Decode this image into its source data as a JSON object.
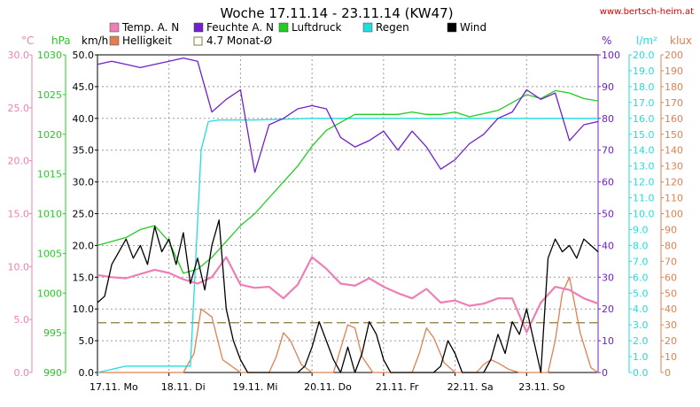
{
  "header": {
    "title": "Woche 17.11.14 - 23.11.14 (KW47)",
    "url": "www.bertsch-heim.at"
  },
  "legend": [
    {
      "label": "Temp. A. N",
      "color": "#ee7fb4"
    },
    {
      "label": "Feuchte A. N",
      "color": "#7020cc"
    },
    {
      "label": "Luftdruck",
      "color": "#22cc22"
    },
    {
      "label": "Regen",
      "color": "#22dddd"
    },
    {
      "label": "Wind",
      "color": "#000000"
    },
    {
      "label": "Helligkeit",
      "color": "#e08050"
    },
    {
      "label": "4.7 Monat-Ø",
      "color": "#8a7a3a",
      "style": "dashed"
    }
  ],
  "axes": {
    "temp": {
      "unit": "°C",
      "color": "#ee7fb4",
      "min": 0,
      "max": 30,
      "step": 5,
      "labels": [
        "0.0",
        "5.0",
        "10.0",
        "15.0",
        "20.0",
        "25.0",
        "30.0"
      ]
    },
    "press": {
      "unit": "hPa",
      "color": "#22cc22",
      "min": 990,
      "max": 1030,
      "step": 5,
      "labels": [
        "990",
        "995",
        "1000",
        "1005",
        "1010",
        "1015",
        "1020",
        "1025",
        "1030"
      ]
    },
    "wind": {
      "unit": "km/h",
      "color": "#000000",
      "min": 0,
      "max": 50,
      "step": 5,
      "labels": [
        "0.0",
        "5.0",
        "10.0",
        "15.0",
        "20.0",
        "25.0",
        "30.0",
        "35.0",
        "40.0",
        "45.0",
        "50.0"
      ]
    },
    "hum": {
      "unit": "%",
      "color": "#7020cc",
      "min": 0,
      "max": 100,
      "step": 10,
      "labels": [
        "0",
        "10",
        "20",
        "30",
        "40",
        "50",
        "60",
        "70",
        "80",
        "90",
        "100"
      ]
    },
    "rain": {
      "unit": "l/m²",
      "color": "#22dddd",
      "min": 0,
      "max": 20,
      "step": 1,
      "labels": [
        "0.0",
        "1.0",
        "2.0",
        "3.0",
        "4.0",
        "5.0",
        "6.0",
        "7.0",
        "8.0",
        "9.0",
        "10.0",
        "11.0",
        "12.0",
        "13.0",
        "14.0",
        "15.0",
        "16.0",
        "17.0",
        "18.0",
        "19.0",
        "20.0"
      ]
    },
    "lux": {
      "unit": "klux",
      "color": "#e08050",
      "min": 0,
      "max": 200,
      "step": 10,
      "labels": [
        "0",
        "10",
        "20",
        "30",
        "40",
        "50",
        "60",
        "70",
        "80",
        "90",
        "100",
        "110",
        "120",
        "130",
        "140",
        "150",
        "160",
        "170",
        "180",
        "190",
        "200"
      ]
    }
  },
  "x_axis": {
    "days": [
      "17.11. Mo",
      "18.11. Di",
      "19.11. Mi",
      "20.11. Do",
      "21.11. Fr",
      "22.11. Sa",
      "23.11. So"
    ]
  },
  "chart_data": {
    "type": "line",
    "x_unit": "day index (0 = 17.11. 00:00)",
    "x_range": [
      0,
      7
    ],
    "grid": true,
    "reference_line": {
      "label": "4.7 Monat-Ø",
      "axis": "temp",
      "value": 4.7
    },
    "series": [
      {
        "name": "Temp. A. N",
        "axis": "temp",
        "x": [
          0,
          0.2,
          0.4,
          0.6,
          0.8,
          1.0,
          1.2,
          1.4,
          1.6,
          1.8,
          2.0,
          2.2,
          2.4,
          2.6,
          2.8,
          3.0,
          3.2,
          3.4,
          3.6,
          3.8,
          4.0,
          4.2,
          4.4,
          4.6,
          4.8,
          5.0,
          5.2,
          5.4,
          5.6,
          5.8,
          6.0,
          6.2,
          6.4,
          6.6,
          6.8,
          7.0
        ],
        "y": [
          9.2,
          9.0,
          8.9,
          9.3,
          9.7,
          9.4,
          8.8,
          8.4,
          9.0,
          10.9,
          8.3,
          8.0,
          8.1,
          7.0,
          8.3,
          10.9,
          9.8,
          8.4,
          8.2,
          8.9,
          8.1,
          7.5,
          7.0,
          7.9,
          6.6,
          6.8,
          6.3,
          6.5,
          7.0,
          7.0,
          3.8,
          6.6,
          8.1,
          7.8,
          7.0,
          6.5
        ]
      },
      {
        "name": "Feuchte A. N",
        "axis": "hum",
        "x": [
          0,
          0.2,
          0.4,
          0.6,
          0.8,
          1.0,
          1.2,
          1.4,
          1.6,
          1.8,
          2.0,
          2.2,
          2.4,
          2.6,
          2.8,
          3.0,
          3.2,
          3.4,
          3.6,
          3.8,
          4.0,
          4.2,
          4.4,
          4.6,
          4.8,
          5.0,
          5.2,
          5.4,
          5.6,
          5.8,
          6.0,
          6.2,
          6.4,
          6.6,
          6.8,
          7.0
        ],
        "y": [
          97,
          98,
          97,
          96,
          97,
          98,
          99,
          98,
          82,
          86,
          89,
          63,
          78,
          80,
          83,
          84,
          83,
          74,
          71,
          73,
          76,
          70,
          76,
          71,
          64,
          67,
          72,
          75,
          80,
          82,
          89,
          86,
          88,
          73,
          78,
          79
        ]
      },
      {
        "name": "Luftdruck",
        "axis": "press",
        "x": [
          0,
          0.2,
          0.4,
          0.6,
          0.8,
          1.0,
          1.2,
          1.4,
          1.6,
          1.8,
          2.0,
          2.2,
          2.4,
          2.6,
          2.8,
          3.0,
          3.2,
          3.4,
          3.6,
          3.8,
          4.0,
          4.2,
          4.4,
          4.6,
          4.8,
          5.0,
          5.2,
          5.4,
          5.6,
          5.8,
          6.0,
          6.2,
          6.4,
          6.6,
          6.8,
          7.0
        ],
        "y": [
          1006.0,
          1006.5,
          1007.0,
          1008.0,
          1008.5,
          1006.5,
          1002.5,
          1003.0,
          1004.5,
          1006.5,
          1008.5,
          1010.0,
          1012.0,
          1014.0,
          1016.0,
          1018.5,
          1020.5,
          1021.5,
          1022.5,
          1022.5,
          1022.5,
          1022.5,
          1022.8,
          1022.5,
          1022.5,
          1022.8,
          1022.2,
          1022.6,
          1023.0,
          1024.0,
          1025.0,
          1024.5,
          1025.5,
          1025.2,
          1024.5,
          1024.2
        ]
      },
      {
        "name": "Regen",
        "axis": "rain",
        "x": [
          0,
          0.4,
          0.8,
          1.3,
          1.45,
          1.55,
          1.7,
          2.2,
          3.0,
          4.0,
          5.0,
          6.0,
          7.0
        ],
        "y": [
          0.0,
          0.4,
          0.4,
          0.4,
          14.0,
          15.8,
          15.9,
          15.9,
          16.0,
          16.0,
          16.0,
          16.0,
          16.0
        ]
      },
      {
        "name": "Wind",
        "axis": "wind",
        "x": [
          0,
          0.1,
          0.2,
          0.3,
          0.4,
          0.5,
          0.6,
          0.7,
          0.8,
          0.9,
          1.0,
          1.1,
          1.2,
          1.3,
          1.4,
          1.5,
          1.6,
          1.7,
          1.8,
          1.9,
          2.0,
          2.1,
          2.2,
          2.3,
          2.4,
          2.5,
          2.6,
          2.7,
          2.8,
          2.9,
          3.0,
          3.1,
          3.2,
          3.3,
          3.4,
          3.5,
          3.6,
          3.7,
          3.8,
          3.9,
          4.0,
          4.1,
          4.2,
          4.3,
          4.4,
          4.5,
          4.6,
          4.7,
          4.8,
          4.9,
          5.0,
          5.1,
          5.2,
          5.3,
          5.4,
          5.5,
          5.6,
          5.7,
          5.8,
          5.9,
          6.0,
          6.1,
          6.2,
          6.3,
          6.4,
          6.5,
          6.6,
          6.7,
          6.8,
          6.9,
          7.0
        ],
        "y": [
          11,
          12,
          17,
          19,
          21,
          18,
          20,
          17,
          23,
          19,
          21,
          17,
          22,
          14,
          18,
          13,
          20,
          24,
          10,
          5,
          2,
          0,
          0,
          0,
          0,
          0,
          0,
          0,
          0,
          1,
          4,
          8,
          5,
          2,
          0,
          4,
          0,
          3,
          8,
          6,
          2,
          0,
          0,
          0,
          0,
          0,
          0,
          0,
          1,
          5,
          3,
          0,
          0,
          0,
          0,
          2,
          6,
          3,
          8,
          6,
          10,
          5,
          0,
          18,
          21,
          19,
          20,
          18,
          21,
          20,
          19
        ]
      },
      {
        "name": "Helligkeit",
        "axis": "lux",
        "x": [
          0,
          0.8,
          1.2,
          1.35,
          1.45,
          1.6,
          1.75,
          2.0,
          2.4,
          2.5,
          2.6,
          2.7,
          2.85,
          3.0,
          3.3,
          3.4,
          3.5,
          3.6,
          3.7,
          3.85,
          4.0,
          4.4,
          4.5,
          4.6,
          4.7,
          4.85,
          5.0,
          5.3,
          5.4,
          5.5,
          5.6,
          5.75,
          5.9,
          6.3,
          6.4,
          6.5,
          6.6,
          6.75,
          6.9,
          7.0
        ],
        "y": [
          0,
          0,
          0,
          12,
          40,
          35,
          8,
          0,
          0,
          10,
          25,
          20,
          5,
          0,
          0,
          15,
          30,
          28,
          10,
          0,
          0,
          0,
          12,
          28,
          22,
          6,
          0,
          0,
          5,
          8,
          6,
          2,
          0,
          0,
          20,
          50,
          60,
          25,
          3,
          0
        ]
      }
    ]
  }
}
